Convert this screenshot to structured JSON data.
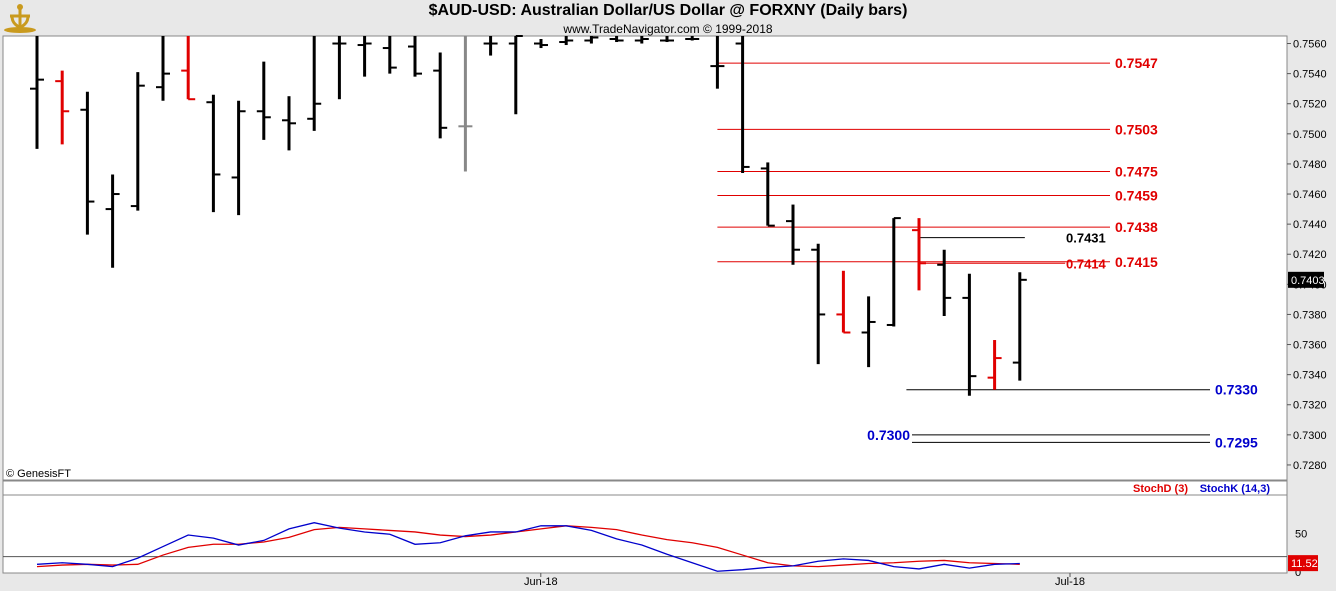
{
  "header": {
    "title": "$AUD-USD:  Australian Dollar/US Dollar @ FORXNY  (Daily bars)",
    "subtitle": "www.TradeNavigator.com © 1999-2018",
    "copyright": "© GenesisFT"
  },
  "colors": {
    "up": "#000000",
    "down": "#e00000",
    "neutral": "#888888",
    "resistance": "#e00000",
    "support": "#0000cc",
    "stochD": "#e00000",
    "stochK": "#0000cc"
  },
  "chart_data": [
    {
      "type": "ohlc",
      "title": "$AUD-USD:  Australian Dollar/US Dollar @ FORXNY  (Daily bars)",
      "ylim": [
        0.727,
        0.7565
      ],
      "y_ticks": [
        "0.7560",
        "0.7540",
        "0.7520",
        "0.7500",
        "0.7480",
        "0.7460",
        "0.7440",
        "0.7420",
        "0.7400",
        "0.7380",
        "0.7360",
        "0.7340",
        "0.7320",
        "0.7300",
        "0.7280"
      ],
      "x_labels": [
        {
          "label": "Jun-18",
          "index": 19
        },
        {
          "label": "Jul-18",
          "index": 40
        }
      ],
      "last_value": "0.7403",
      "bars": [
        {
          "o": 0.753,
          "h": 0.7565,
          "l": 0.749,
          "c": 0.7536,
          "color": "up"
        },
        {
          "o": 0.7535,
          "h": 0.7542,
          "l": 0.7493,
          "c": 0.7515,
          "color": "down"
        },
        {
          "o": 0.7516,
          "h": 0.7528,
          "l": 0.7433,
          "c": 0.7455,
          "color": "up"
        },
        {
          "o": 0.745,
          "h": 0.7473,
          "l": 0.7411,
          "c": 0.746,
          "color": "up"
        },
        {
          "o": 0.7452,
          "h": 0.7541,
          "l": 0.7449,
          "c": 0.7532,
          "color": "up"
        },
        {
          "o": 0.7531,
          "h": 0.7565,
          "l": 0.7522,
          "c": 0.754,
          "color": "up"
        },
        {
          "o": 0.7542,
          "h": 0.7565,
          "l": 0.7523,
          "c": 0.7523,
          "color": "down"
        },
        {
          "o": 0.7521,
          "h": 0.7526,
          "l": 0.7448,
          "c": 0.7473,
          "color": "up"
        },
        {
          "o": 0.7471,
          "h": 0.7522,
          "l": 0.7446,
          "c": 0.7515,
          "color": "up"
        },
        {
          "o": 0.7515,
          "h": 0.7548,
          "l": 0.7496,
          "c": 0.7511,
          "color": "up"
        },
        {
          "o": 0.7509,
          "h": 0.7525,
          "l": 0.7489,
          "c": 0.7507,
          "color": "up"
        },
        {
          "o": 0.751,
          "h": 0.7565,
          "l": 0.7502,
          "c": 0.752,
          "color": "up"
        },
        {
          "o": 0.756,
          "h": 0.7565,
          "l": 0.7523,
          "c": 0.756,
          "color": "up"
        },
        {
          "o": 0.7559,
          "h": 0.7565,
          "l": 0.7538,
          "c": 0.756,
          "color": "up"
        },
        {
          "o": 0.7557,
          "h": 0.7565,
          "l": 0.754,
          "c": 0.7544,
          "color": "up"
        },
        {
          "o": 0.7558,
          "h": 0.7565,
          "l": 0.7538,
          "c": 0.754,
          "color": "up"
        },
        {
          "o": 0.7542,
          "h": 0.7554,
          "l": 0.7497,
          "c": 0.7504,
          "color": "up"
        },
        {
          "o": 0.7505,
          "h": 0.7565,
          "l": 0.7475,
          "c": 0.7505,
          "color": "neutral"
        },
        {
          "o": 0.756,
          "h": 0.7565,
          "l": 0.7552,
          "c": 0.756,
          "color": "up"
        },
        {
          "o": 0.756,
          "h": 0.7565,
          "l": 0.7513,
          "c": 0.7565,
          "color": "up"
        },
        {
          "o": 0.756,
          "h": 0.7563,
          "l": 0.7557,
          "c": 0.7559,
          "color": "up"
        },
        {
          "o": 0.7561,
          "h": 0.7565,
          "l": 0.7559,
          "c": 0.7562,
          "color": "up"
        },
        {
          "o": 0.7562,
          "h": 0.7565,
          "l": 0.756,
          "c": 0.7564,
          "color": "up"
        },
        {
          "o": 0.7563,
          "h": 0.7565,
          "l": 0.7561,
          "c": 0.7562,
          "color": "up"
        },
        {
          "o": 0.7562,
          "h": 0.7565,
          "l": 0.756,
          "c": 0.7563,
          "color": "up"
        },
        {
          "o": 0.7562,
          "h": 0.7565,
          "l": 0.7561,
          "c": 0.7562,
          "color": "up"
        },
        {
          "o": 0.7563,
          "h": 0.7565,
          "l": 0.7562,
          "c": 0.7563,
          "color": "up"
        },
        {
          "o": 0.7545,
          "h": 0.7565,
          "l": 0.753,
          "c": 0.7545,
          "color": "up"
        },
        {
          "o": 0.756,
          "h": 0.7565,
          "l": 0.7474,
          "c": 0.7478,
          "color": "up"
        },
        {
          "o": 0.7477,
          "h": 0.7481,
          "l": 0.7439,
          "c": 0.7439,
          "color": "up"
        },
        {
          "o": 0.7442,
          "h": 0.7453,
          "l": 0.7413,
          "c": 0.7423,
          "color": "up"
        },
        {
          "o": 0.7423,
          "h": 0.7427,
          "l": 0.7347,
          "c": 0.738,
          "color": "up"
        },
        {
          "o": 0.738,
          "h": 0.7409,
          "l": 0.7368,
          "c": 0.7368,
          "color": "down"
        },
        {
          "o": 0.7368,
          "h": 0.7392,
          "l": 0.7345,
          "c": 0.7375,
          "color": "up"
        },
        {
          "o": 0.7373,
          "h": 0.7444,
          "l": 0.7372,
          "c": 0.7444,
          "color": "up"
        },
        {
          "o": 0.7436,
          "h": 0.7444,
          "l": 0.7396,
          "c": 0.7414,
          "color": "down"
        },
        {
          "o": 0.7413,
          "h": 0.7423,
          "l": 0.7379,
          "c": 0.7391,
          "color": "up"
        },
        {
          "o": 0.7391,
          "h": 0.7407,
          "l": 0.7326,
          "c": 0.7339,
          "color": "up"
        },
        {
          "o": 0.7338,
          "h": 0.7363,
          "l": 0.733,
          "c": 0.7351,
          "color": "down"
        },
        {
          "o": 0.7348,
          "h": 0.7408,
          "l": 0.7336,
          "c": 0.7403,
          "color": "up"
        }
      ],
      "levels": [
        {
          "value": 0.7547,
          "label": "0.7547",
          "kind": "resistance",
          "start": 27,
          "end": 38
        },
        {
          "value": 0.7503,
          "label": "0.7503",
          "kind": "resistance",
          "start": 27,
          "end": 38
        },
        {
          "value": 0.7475,
          "label": "0.7475",
          "kind": "resistance",
          "start": 27,
          "end": 38
        },
        {
          "value": 0.7459,
          "label": "0.7459",
          "kind": "resistance",
          "start": 27,
          "end": 38
        },
        {
          "value": 0.7438,
          "label": "0.7438",
          "kind": "resistance",
          "start": 27,
          "end": 38
        },
        {
          "value": 0.7415,
          "label": "0.7415",
          "kind": "resistance",
          "start": 27,
          "end": 38
        },
        {
          "value": 0.7431,
          "label": "0.7431",
          "kind": "pivot",
          "start": 35,
          "end": 39.2
        },
        {
          "value": 0.7414,
          "label": "0.7414",
          "kind": "pivot-red",
          "start": 35,
          "end": 40.8
        },
        {
          "value": 0.733,
          "label": "0.7330",
          "kind": "support",
          "start": 34.5,
          "end": 45.5
        },
        {
          "value": 0.73,
          "label": "0.7300",
          "kind": "support",
          "start": 34.5,
          "end": 45.5
        },
        {
          "value": 0.7295,
          "label": "0.7295",
          "kind": "support",
          "start": 34.5,
          "end": 45.5
        }
      ]
    },
    {
      "type": "line",
      "title": "",
      "legend": [
        "StochD (3)",
        "StochK (14,3)"
      ],
      "ylim": [
        0,
        100
      ],
      "y_ticks": [
        "50",
        "0"
      ],
      "last_value": "11.52",
      "reference_line": 20,
      "series": [
        {
          "name": "StochD (3)",
          "color": "stochD",
          "values": [
            7,
            9,
            10,
            9,
            10,
            22,
            32,
            36,
            36,
            39,
            45,
            55,
            58,
            56,
            54,
            52,
            48,
            46,
            48,
            52,
            56,
            60,
            58,
            55,
            48,
            42,
            38,
            32,
            22,
            12,
            8,
            7,
            9,
            11,
            12,
            14,
            15,
            12,
            11,
            10
          ]
        },
        {
          "name": "StochK (14,3)",
          "color": "stochK",
          "values": [
            10,
            12,
            10,
            7,
            18,
            33,
            48,
            44,
            35,
            41,
            56,
            64,
            57,
            52,
            49,
            36,
            38,
            47,
            52,
            52,
            60,
            60,
            54,
            43,
            35,
            23,
            12,
            1,
            3,
            6,
            8,
            14,
            17,
            15,
            7,
            4,
            10,
            5,
            10,
            11
          ]
        }
      ]
    }
  ]
}
